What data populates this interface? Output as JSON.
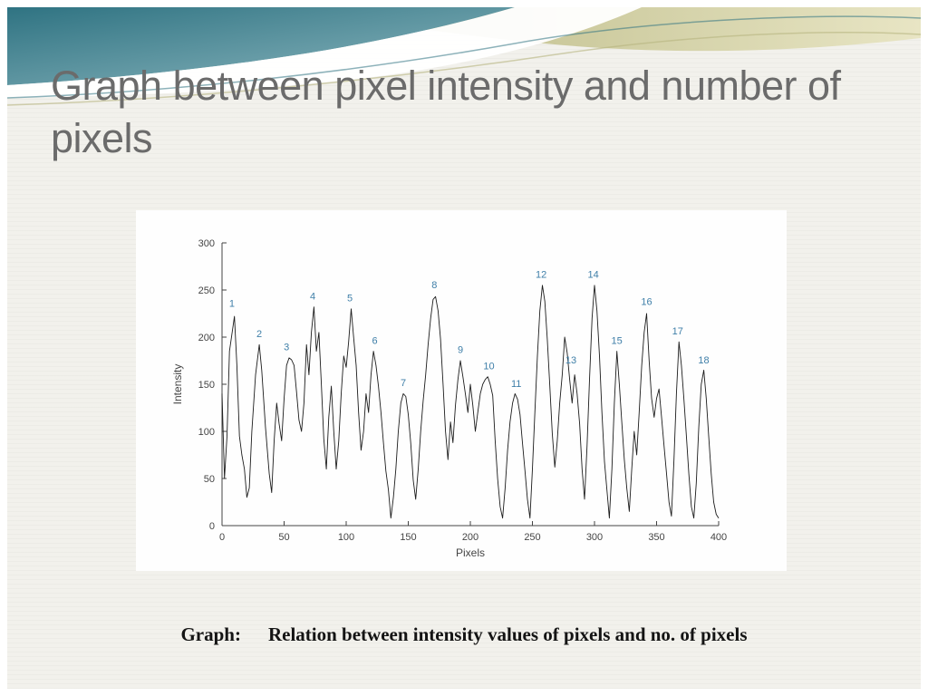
{
  "slide": {
    "title": "Graph between pixel intensity and number of pixels",
    "caption": {
      "label": "Graph:",
      "text": "Relation between intensity values of pixels and no. of pixels"
    }
  },
  "theme": {
    "title_color": "#6b6b6b",
    "teal_dark": "#2f7382",
    "teal_light": "#8fb9c1",
    "olive_dark": "#b5b47e",
    "olive_light": "#e8e5c4",
    "annotation_blue": "#3f7fa8",
    "line_color": "#1c1c1c",
    "axis_color": "#444444",
    "white": "#ffffff"
  },
  "chart_data": {
    "type": "line",
    "title": "",
    "xlabel": "Pixels",
    "ylabel": "Intensity",
    "xlim": [
      0,
      400
    ],
    "ylim": [
      0,
      300
    ],
    "xticks": [
      0,
      50,
      100,
      150,
      200,
      250,
      300,
      350,
      400
    ],
    "yticks": [
      0,
      50,
      100,
      150,
      200,
      250,
      300
    ],
    "grid": false,
    "legend": "none",
    "points": [
      [
        0,
        140
      ],
      [
        2,
        50
      ],
      [
        4,
        95
      ],
      [
        6,
        185
      ],
      [
        10,
        222
      ],
      [
        12,
        170
      ],
      [
        14,
        95
      ],
      [
        16,
        75
      ],
      [
        18,
        60
      ],
      [
        20,
        30
      ],
      [
        22,
        40
      ],
      [
        24,
        100
      ],
      [
        27,
        160
      ],
      [
        30,
        192
      ],
      [
        32,
        165
      ],
      [
        35,
        105
      ],
      [
        38,
        55
      ],
      [
        40,
        35
      ],
      [
        42,
        90
      ],
      [
        44,
        130
      ],
      [
        46,
        108
      ],
      [
        48,
        90
      ],
      [
        50,
        135
      ],
      [
        52,
        170
      ],
      [
        54,
        178
      ],
      [
        56,
        176
      ],
      [
        58,
        170
      ],
      [
        60,
        142
      ],
      [
        62,
        112
      ],
      [
        64,
        100
      ],
      [
        66,
        130
      ],
      [
        68,
        192
      ],
      [
        70,
        160
      ],
      [
        72,
        205
      ],
      [
        74,
        232
      ],
      [
        76,
        185
      ],
      [
        78,
        205
      ],
      [
        80,
        150
      ],
      [
        82,
        92
      ],
      [
        84,
        60
      ],
      [
        86,
        115
      ],
      [
        88,
        148
      ],
      [
        90,
        100
      ],
      [
        92,
        60
      ],
      [
        94,
        90
      ],
      [
        96,
        140
      ],
      [
        98,
        180
      ],
      [
        100,
        168
      ],
      [
        102,
        195
      ],
      [
        104,
        230
      ],
      [
        106,
        200
      ],
      [
        108,
        170
      ],
      [
        110,
        120
      ],
      [
        112,
        80
      ],
      [
        114,
        100
      ],
      [
        116,
        140
      ],
      [
        118,
        120
      ],
      [
        120,
        160
      ],
      [
        122,
        185
      ],
      [
        124,
        170
      ],
      [
        126,
        148
      ],
      [
        128,
        120
      ],
      [
        130,
        88
      ],
      [
        132,
        58
      ],
      [
        134,
        38
      ],
      [
        136,
        8
      ],
      [
        138,
        30
      ],
      [
        140,
        60
      ],
      [
        142,
        100
      ],
      [
        144,
        130
      ],
      [
        146,
        140
      ],
      [
        148,
        137
      ],
      [
        150,
        118
      ],
      [
        152,
        88
      ],
      [
        154,
        48
      ],
      [
        156,
        28
      ],
      [
        158,
        60
      ],
      [
        160,
        100
      ],
      [
        162,
        132
      ],
      [
        164,
        160
      ],
      [
        166,
        192
      ],
      [
        168,
        220
      ],
      [
        170,
        240
      ],
      [
        172,
        243
      ],
      [
        174,
        228
      ],
      [
        176,
        198
      ],
      [
        178,
        150
      ],
      [
        180,
        100
      ],
      [
        182,
        70
      ],
      [
        184,
        110
      ],
      [
        186,
        88
      ],
      [
        188,
        128
      ],
      [
        190,
        155
      ],
      [
        192,
        175
      ],
      [
        194,
        158
      ],
      [
        196,
        140
      ],
      [
        198,
        120
      ],
      [
        200,
        150
      ],
      [
        202,
        128
      ],
      [
        204,
        100
      ],
      [
        206,
        120
      ],
      [
        208,
        140
      ],
      [
        210,
        150
      ],
      [
        212,
        155
      ],
      [
        214,
        158
      ],
      [
        216,
        150
      ],
      [
        218,
        138
      ],
      [
        220,
        90
      ],
      [
        222,
        50
      ],
      [
        224,
        20
      ],
      [
        226,
        8
      ],
      [
        228,
        40
      ],
      [
        230,
        80
      ],
      [
        232,
        110
      ],
      [
        234,
        130
      ],
      [
        236,
        140
      ],
      [
        238,
        134
      ],
      [
        240,
        118
      ],
      [
        242,
        88
      ],
      [
        244,
        58
      ],
      [
        246,
        28
      ],
      [
        248,
        8
      ],
      [
        250,
        60
      ],
      [
        252,
        120
      ],
      [
        254,
        180
      ],
      [
        256,
        228
      ],
      [
        258,
        255
      ],
      [
        260,
        238
      ],
      [
        262,
        198
      ],
      [
        264,
        148
      ],
      [
        266,
        98
      ],
      [
        268,
        62
      ],
      [
        270,
        90
      ],
      [
        272,
        130
      ],
      [
        274,
        160
      ],
      [
        276,
        200
      ],
      [
        278,
        183
      ],
      [
        280,
        155
      ],
      [
        282,
        130
      ],
      [
        284,
        160
      ],
      [
        286,
        140
      ],
      [
        288,
        108
      ],
      [
        290,
        60
      ],
      [
        292,
        28
      ],
      [
        294,
        85
      ],
      [
        296,
        155
      ],
      [
        298,
        220
      ],
      [
        300,
        255
      ],
      [
        302,
        228
      ],
      [
        304,
        180
      ],
      [
        306,
        120
      ],
      [
        308,
        68
      ],
      [
        310,
        38
      ],
      [
        312,
        8
      ],
      [
        314,
        60
      ],
      [
        316,
        130
      ],
      [
        318,
        185
      ],
      [
        320,
        150
      ],
      [
        322,
        110
      ],
      [
        324,
        70
      ],
      [
        326,
        40
      ],
      [
        328,
        15
      ],
      [
        330,
        60
      ],
      [
        332,
        100
      ],
      [
        334,
        75
      ],
      [
        336,
        120
      ],
      [
        338,
        170
      ],
      [
        340,
        205
      ],
      [
        342,
        225
      ],
      [
        344,
        175
      ],
      [
        346,
        135
      ],
      [
        348,
        115
      ],
      [
        350,
        135
      ],
      [
        352,
        145
      ],
      [
        354,
        115
      ],
      [
        356,
        85
      ],
      [
        358,
        55
      ],
      [
        360,
        25
      ],
      [
        362,
        10
      ],
      [
        364,
        70
      ],
      [
        366,
        140
      ],
      [
        368,
        195
      ],
      [
        370,
        170
      ],
      [
        372,
        135
      ],
      [
        374,
        95
      ],
      [
        376,
        55
      ],
      [
        378,
        20
      ],
      [
        380,
        8
      ],
      [
        382,
        45
      ],
      [
        384,
        105
      ],
      [
        386,
        150
      ],
      [
        388,
        165
      ],
      [
        390,
        135
      ],
      [
        392,
        95
      ],
      [
        394,
        55
      ],
      [
        396,
        25
      ],
      [
        398,
        12
      ],
      [
        400,
        8
      ]
    ],
    "peaks": [
      {
        "label": "1",
        "x": 8,
        "y": 232
      },
      {
        "label": "2",
        "x": 30,
        "y": 200
      },
      {
        "label": "3",
        "x": 52,
        "y": 186
      },
      {
        "label": "4",
        "x": 73,
        "y": 240
      },
      {
        "label": "5",
        "x": 103,
        "y": 238
      },
      {
        "label": "6",
        "x": 123,
        "y": 193
      },
      {
        "label": "7",
        "x": 146,
        "y": 148
      },
      {
        "label": "8",
        "x": 171,
        "y": 252
      },
      {
        "label": "9",
        "x": 192,
        "y": 183
      },
      {
        "label": "10",
        "x": 215,
        "y": 166
      },
      {
        "label": "11",
        "x": 237,
        "y": 147
      },
      {
        "label": "12",
        "x": 257,
        "y": 263
      },
      {
        "label": "13",
        "x": 281,
        "y": 172
      },
      {
        "label": "14",
        "x": 299,
        "y": 263
      },
      {
        "label": "15",
        "x": 318,
        "y": 193
      },
      {
        "label": "16",
        "x": 342,
        "y": 234
      },
      {
        "label": "17",
        "x": 367,
        "y": 203
      },
      {
        "label": "18",
        "x": 388,
        "y": 172
      }
    ]
  }
}
